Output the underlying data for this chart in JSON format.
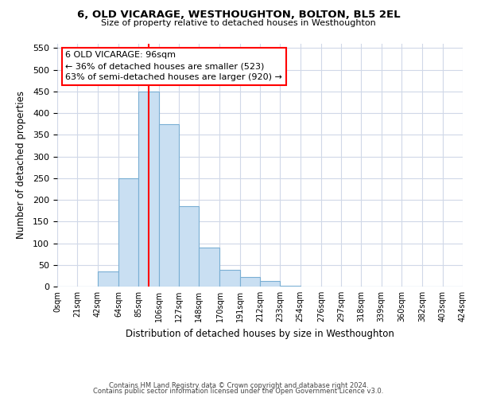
{
  "title": "6, OLD VICARAGE, WESTHOUGHTON, BOLTON, BL5 2EL",
  "subtitle": "Size of property relative to detached houses in Westhoughton",
  "xlabel": "Distribution of detached houses by size in Westhoughton",
  "ylabel": "Number of detached properties",
  "bar_color": "#c9dff2",
  "bar_edge_color": "#7aafd4",
  "bin_edges": [
    0,
    21,
    42,
    64,
    85,
    106,
    127,
    148,
    170,
    191,
    212,
    233,
    254,
    276,
    297,
    318,
    339,
    360,
    382,
    403,
    424
  ],
  "bar_heights": [
    0,
    0,
    35,
    250,
    450,
    375,
    185,
    90,
    38,
    22,
    12,
    2,
    0,
    0,
    0,
    0,
    0,
    0,
    0,
    0
  ],
  "tick_labels": [
    "0sqm",
    "21sqm",
    "42sqm",
    "64sqm",
    "85sqm",
    "106sqm",
    "127sqm",
    "148sqm",
    "170sqm",
    "191sqm",
    "212sqm",
    "233sqm",
    "254sqm",
    "276sqm",
    "297sqm",
    "318sqm",
    "339sqm",
    "360sqm",
    "382sqm",
    "403sqm",
    "424sqm"
  ],
  "ylim": [
    0,
    560
  ],
  "yticks": [
    0,
    50,
    100,
    150,
    200,
    250,
    300,
    350,
    400,
    450,
    500,
    550
  ],
  "property_line_x": 96,
  "annotation_title": "6 OLD VICARAGE: 96sqm",
  "annotation_line1": "← 36% of detached houses are smaller (523)",
  "annotation_line2": "63% of semi-detached houses are larger (920) →",
  "footer_line1": "Contains HM Land Registry data © Crown copyright and database right 2024.",
  "footer_line2": "Contains public sector information licensed under the Open Government Licence v3.0.",
  "background_color": "#ffffff",
  "grid_color": "#d0d8e8"
}
